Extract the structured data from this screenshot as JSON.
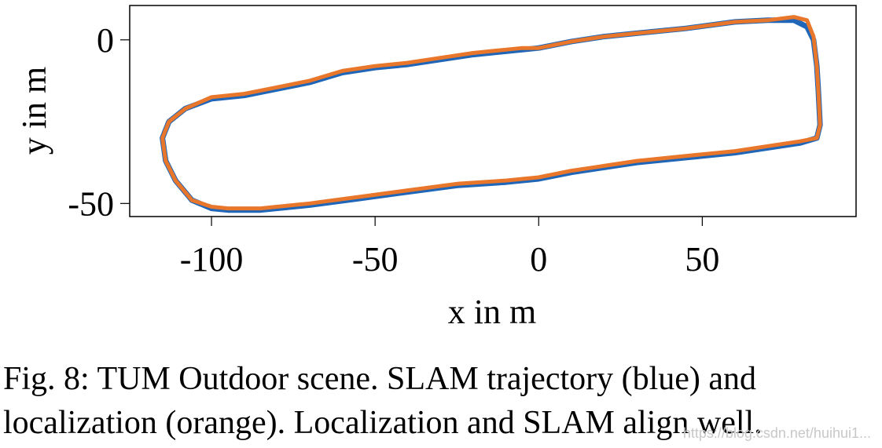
{
  "chart_data": {
    "type": "line",
    "title": "",
    "xlabel": "x in m",
    "ylabel": "y in m",
    "xlim": [
      -125,
      97
    ],
    "ylim": [
      -54,
      10.5
    ],
    "xticks": [
      -100,
      -50,
      0,
      50
    ],
    "xtick_labels": [
      "-100",
      "-50",
      "0",
      "50"
    ],
    "yticks": [
      0,
      -50
    ],
    "ytick_labels": [
      "0",
      "-50"
    ],
    "grid": false,
    "legend": "none",
    "series": [
      {
        "color": "#1f66b8",
        "x": [
          0,
          10,
          20,
          30,
          45,
          60,
          70,
          78,
          82,
          84,
          85,
          85.5,
          86,
          85,
          80,
          70,
          60,
          45,
          30,
          20,
          10,
          0,
          -10,
          -25,
          -40,
          -55,
          -70,
          -85,
          -95,
          -100,
          -106,
          -111,
          -114,
          -115,
          -113,
          -108,
          -100,
          -90,
          -80,
          -70,
          -60,
          -50,
          -40,
          -30,
          -20,
          -10,
          -5,
          0
        ],
        "y": [
          -2.5,
          -0.5,
          1,
          2,
          3.5,
          5.5,
          6,
          6,
          4,
          0,
          -8,
          -16,
          -26,
          -30,
          -31.5,
          -33,
          -34.5,
          -36,
          -37.5,
          -39,
          -40.5,
          -42.5,
          -43.5,
          -44.5,
          -46.5,
          -48.5,
          -50.5,
          -52,
          -52,
          -51.5,
          -49,
          -43,
          -37,
          -30,
          -25,
          -21,
          -18,
          -17,
          -15,
          -13,
          -10,
          -8.5,
          -7.5,
          -6,
          -4.5,
          -3.5,
          -3,
          -2.5
        ]
      },
      {
        "color": "#e8762b",
        "x": [
          0,
          10,
          20,
          30,
          45,
          60,
          70,
          78,
          82,
          84,
          85,
          85.5,
          86,
          85,
          80,
          70,
          60,
          45,
          30,
          20,
          10,
          0,
          -10,
          -25,
          -40,
          -55,
          -70,
          -85,
          -95,
          -100,
          -106,
          -111,
          -114,
          -115,
          -113,
          -108,
          -100,
          -90,
          -80,
          -70,
          -60,
          -50,
          -40,
          -30,
          -20,
          -10,
          -5,
          0
        ],
        "y": [
          -2.5,
          -0.5,
          1,
          2,
          3.5,
          5.5,
          6,
          7,
          6,
          1,
          -8,
          -16,
          -26,
          -30,
          -31,
          -32.5,
          -34,
          -35.5,
          -37,
          -38.5,
          -40,
          -42,
          -43,
          -44,
          -46,
          -48,
          -50,
          -51.5,
          -51.5,
          -51,
          -49,
          -43,
          -37,
          -30,
          -25,
          -21,
          -17.5,
          -16.5,
          -14.5,
          -12.5,
          -9.5,
          -8,
          -7,
          -5.5,
          -4,
          -3,
          -2.5,
          -2.5
        ]
      }
    ]
  },
  "caption": {
    "line1": "Fig. 8: TUM Outdoor scene. SLAM trajectory (blue) and",
    "line2": "localization (orange). Localization and SLAM align well."
  },
  "watermark": "https://blog.csdn.net/huihui1..."
}
